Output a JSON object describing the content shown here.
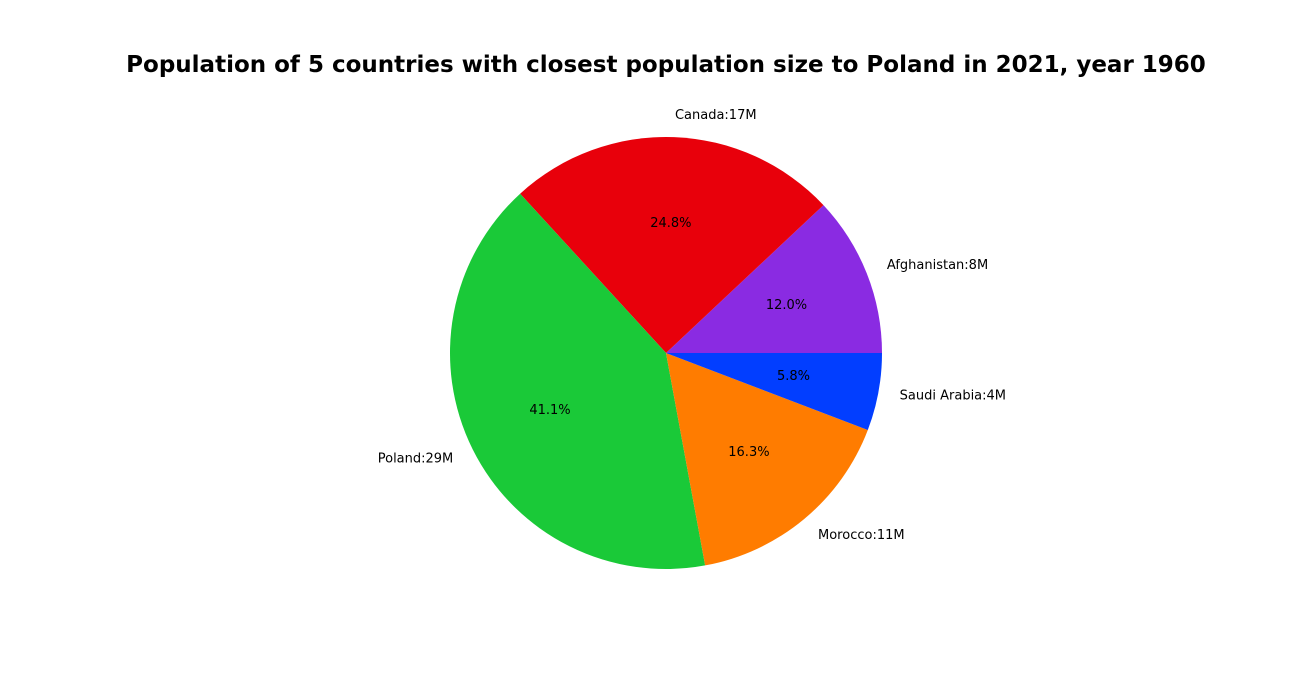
{
  "chart_data": {
    "type": "pie",
    "title": "Population of 5 countries with closest population size to Poland in 2021, year 1960",
    "slices": [
      {
        "label": "Afghanistan:8M",
        "percent_label": "12.0%",
        "value": 12.0,
        "color": "#8a2be2"
      },
      {
        "label": "Canada:17M",
        "percent_label": "24.8%",
        "value": 24.8,
        "color": "#e8000b"
      },
      {
        "label": "Poland:29M",
        "percent_label": "41.1%",
        "value": 41.1,
        "color": "#1ac938"
      },
      {
        "label": "Morocco:11M",
        "percent_label": "16.3%",
        "value": 16.3,
        "color": "#ff7c00"
      },
      {
        "label": "Saudi Arabia:4M",
        "percent_label": "5.8%",
        "value": 5.8,
        "color": "#023eff"
      }
    ],
    "start_angle_deg": 0,
    "direction": "counterclockwise",
    "legend": "none"
  }
}
